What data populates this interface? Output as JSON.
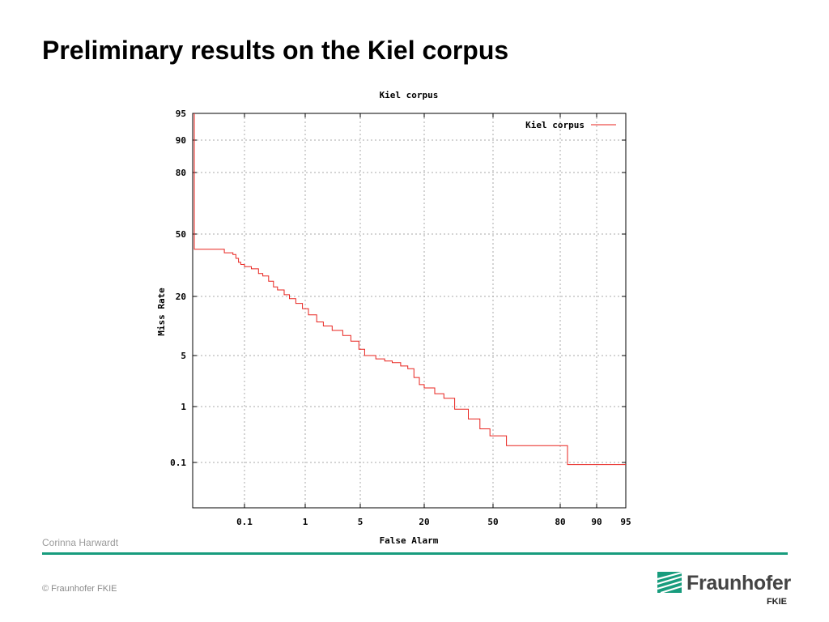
{
  "slide": {
    "title": "Preliminary results on the Kiel corpus",
    "author": "Corinna Harwardt",
    "copyright": "© Fraunhofer FKIE",
    "logo_name": "Fraunhofer",
    "logo_unit": "FKIE",
    "accent_color": "#179c7d"
  },
  "chart_data": {
    "type": "line",
    "title": "Kiel corpus",
    "xlabel": "False Alarm",
    "ylabel": "Miss Rate",
    "xscale": "normal-deviate (DET)",
    "yscale": "normal-deviate (DET)",
    "xticks": [
      "0.1",
      "1",
      "5",
      "20",
      "50",
      "80",
      "90",
      "95"
    ],
    "yticks": [
      "95",
      "90",
      "80",
      "50",
      "20",
      "5",
      "1",
      "0.1"
    ],
    "grid": true,
    "legend_position": "top-right",
    "series_color": "#e8231e",
    "series": [
      {
        "name": "Kiel corpus",
        "points": [
          [
            0.005,
            95
          ],
          [
            0.005,
            40
          ],
          [
            0.02,
            40
          ],
          [
            0.03,
            38
          ],
          [
            0.05,
            37
          ],
          [
            0.06,
            35
          ],
          [
            0.07,
            33
          ],
          [
            0.08,
            32
          ],
          [
            0.1,
            31
          ],
          [
            0.13,
            30
          ],
          [
            0.17,
            28
          ],
          [
            0.2,
            27
          ],
          [
            0.25,
            25
          ],
          [
            0.3,
            23
          ],
          [
            0.35,
            22
          ],
          [
            0.45,
            20.5
          ],
          [
            0.55,
            19
          ],
          [
            0.7,
            17
          ],
          [
            0.9,
            15
          ],
          [
            1.1,
            13
          ],
          [
            1.4,
            11
          ],
          [
            1.7,
            10
          ],
          [
            2.2,
            9
          ],
          [
            3.0,
            8
          ],
          [
            3.8,
            7
          ],
          [
            4.8,
            5.8
          ],
          [
            5.5,
            5
          ],
          [
            7,
            4.5
          ],
          [
            8.5,
            4.2
          ],
          [
            10,
            4.0
          ],
          [
            12,
            3.6
          ],
          [
            14,
            3.3
          ],
          [
            16,
            2.5
          ],
          [
            18,
            2.0
          ],
          [
            20,
            1.8
          ],
          [
            23,
            1.5
          ],
          [
            26,
            1.3
          ],
          [
            30,
            0.9
          ],
          [
            36,
            0.6
          ],
          [
            42,
            0.4
          ],
          [
            48,
            0.3
          ],
          [
            56,
            0.2
          ],
          [
            82,
            0.2
          ],
          [
            82,
            0.09
          ],
          [
            95,
            0.09
          ]
        ]
      }
    ]
  }
}
